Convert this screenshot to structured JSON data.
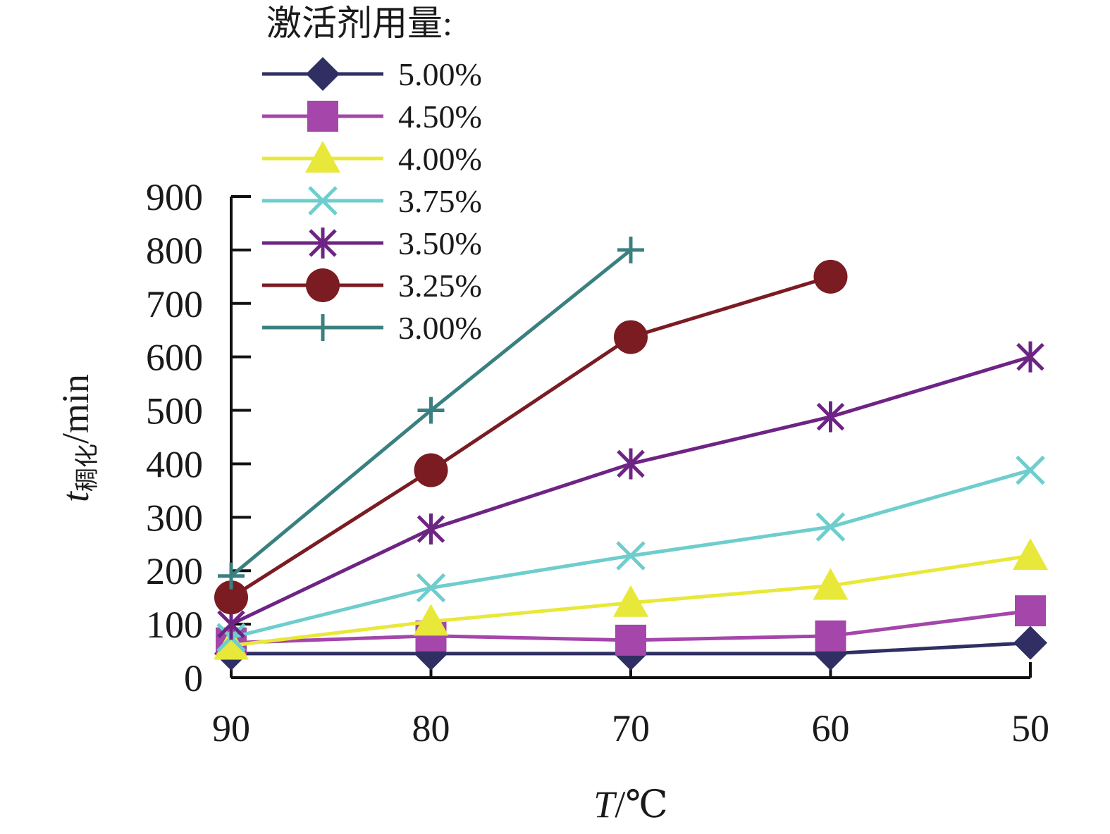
{
  "chart_data": {
    "type": "line",
    "legend_title": "激活剂用量:",
    "legend_position": "top-left",
    "xlabel": {
      "main": "T",
      "rest": "/℃"
    },
    "ylabel": {
      "main": "t",
      "sub": "稠化",
      "rest": "/min"
    },
    "categories": [
      "90",
      "80",
      "70",
      "60",
      "50"
    ],
    "yticks": [
      "0",
      "100",
      "200",
      "300",
      "400",
      "500",
      "600",
      "700",
      "800",
      "900"
    ],
    "ylim": [
      0,
      900
    ],
    "grid": false,
    "series": [
      {
        "name": "5.00%",
        "color": "#2f2f63",
        "marker": "diamond",
        "values": [
          45,
          45,
          45,
          45,
          65
        ]
      },
      {
        "name": "4.50%",
        "color": "#a446aa",
        "marker": "square",
        "values": [
          65,
          78,
          70,
          78,
          125
        ]
      },
      {
        "name": "4.00%",
        "color": "#e8e83a",
        "marker": "triangle",
        "values": [
          60,
          105,
          140,
          172,
          228
        ]
      },
      {
        "name": "3.75%",
        "color": "#6ecdcd",
        "marker": "x",
        "values": [
          75,
          168,
          228,
          282,
          388
        ]
      },
      {
        "name": "3.50%",
        "color": "#6e2484",
        "marker": "star",
        "values": [
          100,
          278,
          400,
          488,
          600
        ]
      },
      {
        "name": "3.25%",
        "color": "#7a1c22",
        "marker": "circle",
        "values": [
          150,
          388,
          637,
          750,
          null
        ]
      },
      {
        "name": "3.00%",
        "color": "#3a8080",
        "marker": "plus",
        "values": [
          190,
          500,
          800,
          null,
          null
        ]
      }
    ]
  }
}
